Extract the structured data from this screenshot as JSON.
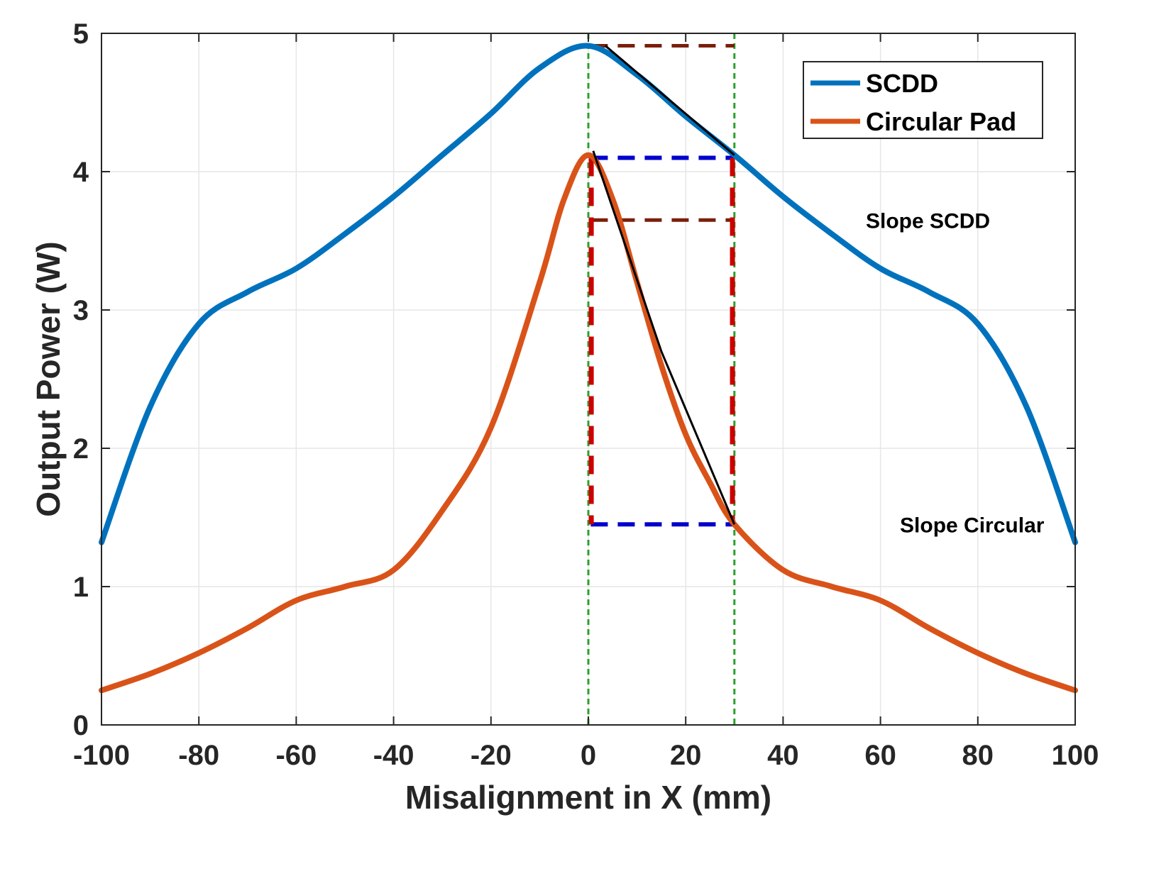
{
  "chart_data": {
    "type": "line",
    "title": "",
    "xlabel": "Misalignment in X (mm)",
    "ylabel": "Output Power (W)",
    "xlim": [
      -100,
      100
    ],
    "ylim": [
      0,
      5
    ],
    "grid": true,
    "xticks": [
      -100,
      -80,
      -60,
      -40,
      -20,
      0,
      20,
      40,
      60,
      80,
      100
    ],
    "yticks": [
      0,
      1,
      2,
      3,
      4,
      5
    ],
    "legend_position": "top-right",
    "colors": {
      "scdd": "#0072BD",
      "circular": "#D95319",
      "guide": "#2CA02C",
      "blue_dash": "#0000CC",
      "red_dash": "#CC0000",
      "brown_dash": "#7A1F0A",
      "slope": "#000000"
    },
    "series": [
      {
        "name": "SCDD",
        "x": [
          -100,
          -90,
          -80,
          -70,
          -60,
          -50,
          -40,
          -30,
          -20,
          -10,
          0,
          10,
          20,
          30,
          40,
          50,
          60,
          70,
          80,
          90,
          100
        ],
        "values": [
          1.32,
          2.3,
          2.9,
          3.13,
          3.3,
          3.55,
          3.82,
          4.12,
          4.42,
          4.75,
          4.91,
          4.7,
          4.4,
          4.12,
          3.82,
          3.55,
          3.3,
          3.13,
          2.9,
          2.3,
          1.32
        ]
      },
      {
        "name": "Circular Pad",
        "x": [
          -100,
          -90,
          -80,
          -70,
          -60,
          -50,
          -40,
          -30,
          -20,
          -10,
          -5,
          0,
          5,
          10,
          15,
          20,
          25,
          30,
          40,
          50,
          60,
          70,
          80,
          90,
          100
        ],
        "values": [
          0.25,
          0.37,
          0.52,
          0.7,
          0.9,
          1.0,
          1.12,
          1.55,
          2.15,
          3.2,
          3.8,
          4.12,
          3.8,
          3.2,
          2.6,
          2.1,
          1.75,
          1.45,
          1.12,
          1.0,
          0.9,
          0.7,
          0.52,
          0.37,
          0.25
        ]
      }
    ],
    "annotations": [
      {
        "text": "Slope SCDD",
        "x": 57,
        "y": 3.65
      },
      {
        "text": "Slope Circular",
        "x": 64,
        "y": 1.45
      }
    ],
    "guides": {
      "vertical_lines_x": [
        0,
        30
      ],
      "scdd_top_y": 4.91,
      "circ_top_y": 4.1,
      "mid_y": 3.65,
      "circ_bottom_y": 1.45,
      "scdd_slope": [
        [
          3.5,
          4.91
        ],
        [
          30,
          4.12
        ]
      ],
      "circ_slope": [
        [
          1,
          4.15
        ],
        [
          15,
          2.7
        ],
        [
          30,
          1.45
        ]
      ]
    }
  }
}
